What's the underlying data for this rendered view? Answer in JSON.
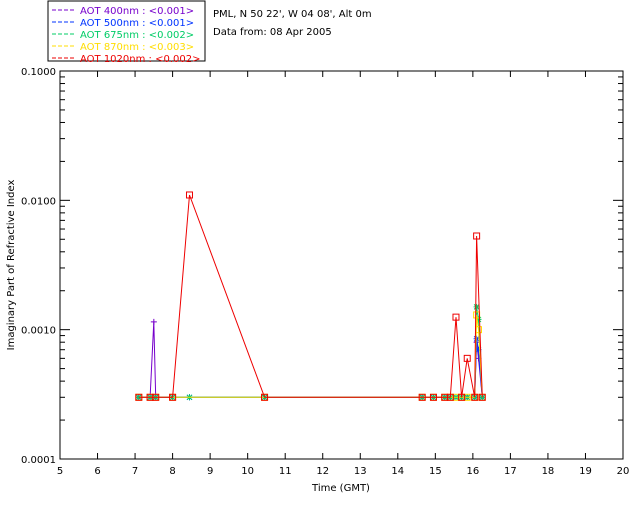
{
  "header": {
    "site": "PML, N 50 22', W 04 08', Alt 0m",
    "date": "Data from: 08 Apr 2005"
  },
  "chart_data": {
    "type": "line",
    "title": "",
    "xlabel": "Time (GMT)",
    "ylabel": "Imaginary Part of Refractive Index",
    "xlim": [
      5,
      20
    ],
    "ylim": [
      0.0001,
      0.1
    ],
    "yscale": "log",
    "x_ticks": [
      "5",
      "6",
      "7",
      "8",
      "9",
      "10",
      "11",
      "12",
      "13",
      "14",
      "15",
      "16",
      "17",
      "18",
      "19",
      "20"
    ],
    "y_ticks": [
      "0.0001",
      "0.0010",
      "0.0100",
      "0.1000"
    ],
    "legend": "top-left",
    "series": [
      {
        "name": "AOT  400nm : <0.001>",
        "color": "#7700cc",
        "marker": "plus",
        "points": [
          [
            7.1,
            0.0003
          ],
          [
            7.4,
            0.0003
          ],
          [
            7.5,
            0.00115
          ],
          [
            7.55,
            0.0003
          ],
          [
            8.0,
            0.0003
          ],
          [
            8.45,
            0.0003
          ],
          [
            10.45,
            0.0003
          ],
          [
            14.65,
            0.0003
          ],
          [
            14.95,
            0.0003
          ],
          [
            15.25,
            0.0003
          ],
          [
            15.4,
            0.0003
          ],
          [
            15.55,
            0.0003
          ],
          [
            15.7,
            0.0003
          ],
          [
            15.85,
            0.0003
          ],
          [
            16.05,
            0.0003
          ],
          [
            16.1,
            0.0008
          ],
          [
            16.15,
            0.0006
          ],
          [
            16.25,
            0.0003
          ]
        ]
      },
      {
        "name": "AOT  500nm : <0.001>",
        "color": "#0033ff",
        "marker": "asterisk",
        "points": [
          [
            7.1,
            0.0003
          ],
          [
            7.4,
            0.0003
          ],
          [
            7.55,
            0.0003
          ],
          [
            8.0,
            0.0003
          ],
          [
            8.45,
            0.0003
          ],
          [
            10.45,
            0.0003
          ],
          [
            14.65,
            0.0003
          ],
          [
            14.95,
            0.0003
          ],
          [
            15.25,
            0.0003
          ],
          [
            15.4,
            0.0003
          ],
          [
            15.55,
            0.0003
          ],
          [
            15.7,
            0.0003
          ],
          [
            15.85,
            0.0003
          ],
          [
            16.05,
            0.0003
          ],
          [
            16.1,
            0.00085
          ],
          [
            16.15,
            0.0007
          ],
          [
            16.25,
            0.0003
          ]
        ]
      },
      {
        "name": "AOT  675nm : <0.002>",
        "color": "#00cc66",
        "marker": "asterisk",
        "points": [
          [
            7.1,
            0.0003
          ],
          [
            7.4,
            0.0003
          ],
          [
            7.55,
            0.0003
          ],
          [
            8.0,
            0.0003
          ],
          [
            8.45,
            0.0003
          ],
          [
            10.45,
            0.0003
          ],
          [
            14.65,
            0.0003
          ],
          [
            14.95,
            0.0003
          ],
          [
            15.25,
            0.0003
          ],
          [
            15.4,
            0.0003
          ],
          [
            15.55,
            0.0003
          ],
          [
            15.7,
            0.0003
          ],
          [
            15.85,
            0.0003
          ],
          [
            16.05,
            0.0003
          ],
          [
            16.1,
            0.0015
          ],
          [
            16.15,
            0.0012
          ],
          [
            16.25,
            0.0003
          ]
        ]
      },
      {
        "name": "AOT  870nm : <0.003>",
        "color": "#ffdd00",
        "marker": "square",
        "points": [
          [
            7.1,
            0.0003
          ],
          [
            7.4,
            0.0003
          ],
          [
            7.55,
            0.0003
          ],
          [
            8.0,
            0.0003
          ],
          [
            10.45,
            0.0003
          ],
          [
            14.65,
            0.0003
          ],
          [
            14.95,
            0.0003
          ],
          [
            15.25,
            0.0003
          ],
          [
            15.4,
            0.0003
          ],
          [
            15.55,
            0.0003
          ],
          [
            15.7,
            0.0003
          ],
          [
            15.85,
            0.0003
          ],
          [
            16.05,
            0.0003
          ],
          [
            16.1,
            0.0013
          ],
          [
            16.15,
            0.001
          ],
          [
            16.25,
            0.0003
          ]
        ]
      },
      {
        "name": "AOT 1020nm : <0.002>",
        "color": "#ee0000",
        "marker": "square",
        "points": [
          [
            7.1,
            0.0003
          ],
          [
            7.4,
            0.0003
          ],
          [
            7.55,
            0.0003
          ],
          [
            8.0,
            0.0003
          ],
          [
            8.45,
            0.011
          ],
          [
            10.45,
            0.0003
          ],
          [
            14.65,
            0.0003
          ],
          [
            14.95,
            0.0003
          ],
          [
            15.25,
            0.0003
          ],
          [
            15.4,
            0.0003
          ],
          [
            15.55,
            0.00125
          ],
          [
            15.7,
            0.0003
          ],
          [
            15.85,
            0.0006
          ],
          [
            16.05,
            0.0003
          ],
          [
            16.1,
            0.0053
          ],
          [
            16.25,
            0.0003
          ]
        ]
      }
    ]
  }
}
